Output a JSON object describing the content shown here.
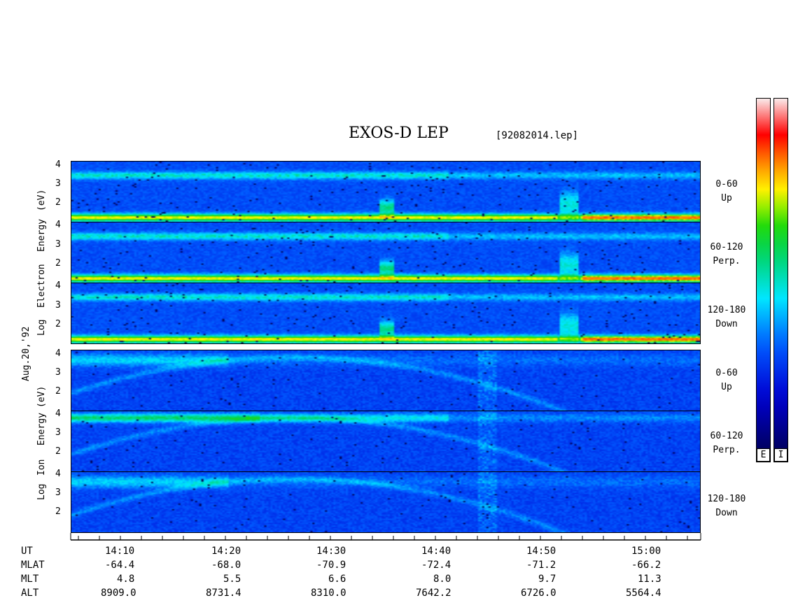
{
  "header": {
    "title": "EXOS-D LEP",
    "filename": "[92082014.lep]"
  },
  "date_label": "Aug.20,'92",
  "electron_ylabel": [
    "Log",
    "Electron",
    "Energy",
    "(eV)"
  ],
  "ion_ylabel": [
    "Log",
    "Ion",
    "Energy",
    "(eV)"
  ],
  "pitch_labels": [
    {
      "range": "0-60",
      "dir": "Up"
    },
    {
      "range": "60-120",
      "dir": "Perp."
    },
    {
      "range": "120-180",
      "dir": "Down"
    },
    {
      "range": "0-60",
      "dir": "Up"
    },
    {
      "range": "60-120",
      "dir": "Perp."
    },
    {
      "range": "120-180",
      "dir": "Down"
    }
  ],
  "colorbar_labels": [
    "E",
    "I"
  ],
  "x_axis": {
    "row_labels": [
      "UT",
      "MLAT",
      "MLT",
      "ALT"
    ],
    "columns": [
      {
        "ut": "14:10",
        "mlat": "-64.4",
        "mlt": "4.8",
        "alt": "8909.0"
      },
      {
        "ut": "14:20",
        "mlat": "-68.0",
        "mlt": "5.5",
        "alt": "8731.4"
      },
      {
        "ut": "14:30",
        "mlat": "-70.9",
        "mlt": "6.6",
        "alt": "8310.0"
      },
      {
        "ut": "14:40",
        "mlat": "-72.4",
        "mlt": "8.0",
        "alt": "7642.2"
      },
      {
        "ut": "14:50",
        "mlat": "-71.2",
        "mlt": "9.7",
        "alt": "6726.0"
      },
      {
        "ut": "15:00",
        "mlat": "-66.2",
        "mlt": "11.3",
        "alt": "5564.4"
      }
    ]
  },
  "chart_data": {
    "type": "heatmap",
    "title": "EXOS-D LEP",
    "x_axis": "UT",
    "x_range_minutes": [
      "14:05",
      "15:05"
    ],
    "y_axis": "Log Energy (eV)",
    "y_ticks": [
      "2",
      "3",
      "4"
    ],
    "y_range": [
      1,
      4
    ],
    "species": [
      "Electron",
      "Ion"
    ],
    "pitch_angle_bins": [
      "0-60",
      "60-120",
      "120-180"
    ],
    "colormap": [
      "#f5f5f5",
      "#ff0000",
      "#ff8c00",
      "#ffff00",
      "#00cc00",
      "#00ffff",
      "#0000cc",
      "#000060"
    ]
  }
}
